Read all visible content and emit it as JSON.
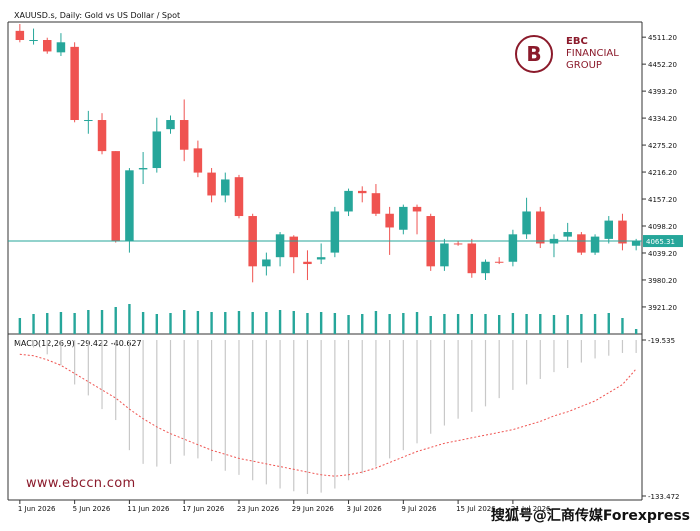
{
  "chart_data": {
    "type": "candlestick",
    "title": "XAUUSD.s, Daily:  Gold vs US Dollar / Spot",
    "ylim": [
      3862.0,
      4540.0
    ],
    "current_price": 4065.31,
    "current_price_label": "4065.31",
    "y_ticks": [
      "4511.20",
      "4452.20",
      "4393.20",
      "4334.20",
      "4275.20",
      "4216.20",
      "4157.20",
      "4098.20",
      "4039.20",
      "3980.20",
      "3921.20"
    ],
    "x_ticks": [
      "1 Jun 2026",
      "5 Jun 2026",
      "11 Jun 2026",
      "17 Jun 2026",
      "23 Jun 2026",
      "29 Jun 2026",
      "3 Jul 2026",
      "9 Jul 2026",
      "15 Jul 2026",
      "21 Jul 2026"
    ],
    "colors": {
      "up": "#26a69a",
      "down": "#ef5350",
      "price_line": "#26a69a",
      "signal": "#ef5350",
      "hist": "#c8c8c8"
    },
    "candles": [
      {
        "o": 4525,
        "h": 4540,
        "l": 4500,
        "c": 4505
      },
      {
        "o": 4505,
        "h": 4530,
        "l": 4495,
        "c": 4505
      },
      {
        "o": 4505,
        "h": 4510,
        "l": 4475,
        "c": 4480
      },
      {
        "o": 4478,
        "h": 4520,
        "l": 4470,
        "c": 4500
      },
      {
        "o": 4490,
        "h": 4500,
        "l": 4325,
        "c": 4330
      },
      {
        "o": 4330,
        "h": 4350,
        "l": 4300,
        "c": 4330
      },
      {
        "o": 4330,
        "h": 4345,
        "l": 4255,
        "c": 4262
      },
      {
        "o": 4262,
        "h": 4262,
        "l": 4062,
        "c": 4065
      },
      {
        "o": 4065,
        "h": 4225,
        "l": 4040,
        "c": 4220
      },
      {
        "o": 4222,
        "h": 4260,
        "l": 4190,
        "c": 4225
      },
      {
        "o": 4225,
        "h": 4335,
        "l": 4215,
        "c": 4305
      },
      {
        "o": 4310,
        "h": 4340,
        "l": 4300,
        "c": 4330
      },
      {
        "o": 4330,
        "h": 4375,
        "l": 4240,
        "c": 4265
      },
      {
        "o": 4268,
        "h": 4285,
        "l": 4205,
        "c": 4215
      },
      {
        "o": 4215,
        "h": 4225,
        "l": 4150,
        "c": 4165
      },
      {
        "o": 4165,
        "h": 4215,
        "l": 4150,
        "c": 4200
      },
      {
        "o": 4205,
        "h": 4210,
        "l": 4115,
        "c": 4120
      },
      {
        "o": 4120,
        "h": 4125,
        "l": 3975,
        "c": 4010
      },
      {
        "o": 4010,
        "h": 4040,
        "l": 3990,
        "c": 4025
      },
      {
        "o": 4030,
        "h": 4085,
        "l": 4010,
        "c": 4080
      },
      {
        "o": 4075,
        "h": 4078,
        "l": 3995,
        "c": 4030
      },
      {
        "o": 4020,
        "h": 4045,
        "l": 3980,
        "c": 4015
      },
      {
        "o": 4025,
        "h": 4060,
        "l": 4015,
        "c": 4030
      },
      {
        "o": 4040,
        "h": 4140,
        "l": 4030,
        "c": 4130
      },
      {
        "o": 4130,
        "h": 4180,
        "l": 4120,
        "c": 4175
      },
      {
        "o": 4175,
        "h": 4185,
        "l": 4150,
        "c": 4170
      },
      {
        "o": 4170,
        "h": 4190,
        "l": 4120,
        "c": 4125
      },
      {
        "o": 4125,
        "h": 4140,
        "l": 4035,
        "c": 4095
      },
      {
        "o": 4090,
        "h": 4145,
        "l": 4080,
        "c": 4140
      },
      {
        "o": 4140,
        "h": 4145,
        "l": 4080,
        "c": 4130
      },
      {
        "o": 4120,
        "h": 4125,
        "l": 4000,
        "c": 4010
      },
      {
        "o": 4010,
        "h": 4070,
        "l": 4000,
        "c": 4060
      },
      {
        "o": 4060,
        "h": 4065,
        "l": 4055,
        "c": 4058
      },
      {
        "o": 4060,
        "h": 4070,
        "l": 3985,
        "c": 3995
      },
      {
        "o": 3995,
        "h": 4025,
        "l": 3980,
        "c": 4020
      },
      {
        "o": 4020,
        "h": 4030,
        "l": 4015,
        "c": 4018
      },
      {
        "o": 4020,
        "h": 4090,
        "l": 4010,
        "c": 4080
      },
      {
        "o": 4080,
        "h": 4160,
        "l": 4070,
        "c": 4130
      },
      {
        "o": 4130,
        "h": 4140,
        "l": 4050,
        "c": 4060
      },
      {
        "o": 4060,
        "h": 4080,
        "l": 4030,
        "c": 4070
      },
      {
        "o": 4075,
        "h": 4105,
        "l": 4065,
        "c": 4085
      },
      {
        "o": 4080,
        "h": 4085,
        "l": 4035,
        "c": 4040
      },
      {
        "o": 4040,
        "h": 4080,
        "l": 4035,
        "c": 4075
      },
      {
        "o": 4070,
        "h": 4120,
        "l": 4060,
        "c": 4110
      },
      {
        "o": 4110,
        "h": 4125,
        "l": 4045,
        "c": 4060
      },
      {
        "o": 4055,
        "h": 4070,
        "l": 4045,
        "c": 4065
      }
    ],
    "volume": [
      16,
      20,
      21,
      22,
      21,
      24,
      24,
      27,
      30,
      22,
      20,
      21,
      24,
      23,
      22,
      22,
      23,
      22,
      22,
      24,
      23,
      21,
      22,
      21,
      19,
      20,
      23,
      20,
      21,
      22,
      18,
      20,
      20,
      20,
      20,
      19,
      21,
      20,
      20,
      19,
      19,
      20,
      20,
      21,
      16,
      5
    ],
    "macd": {
      "label": "MACD(12,26,9) -29.422 -40.627",
      "ylim": [
        -133.472,
        -19.535
      ],
      "y_ticks": [
        "-19.535",
        "-133.472"
      ],
      "histogram": [
        -22,
        -25,
        -30,
        -38,
        -52,
        -60,
        -70,
        -78,
        -100,
        -110,
        -112,
        -110,
        -104,
        -106,
        -108,
        -115,
        -118,
        -122,
        -125,
        -128,
        -130,
        -132,
        -131,
        -128,
        -122,
        -117,
        -112,
        -106,
        -100,
        -95,
        -88,
        -82,
        -77,
        -72,
        -68,
        -62,
        -56,
        -52,
        -48,
        -43,
        -40,
        -36,
        -33,
        -31,
        -29,
        -29
      ],
      "signal": [
        -30,
        -31,
        -34,
        -38,
        -44,
        -50,
        -56,
        -62,
        -70,
        -77,
        -83,
        -88,
        -92,
        -96,
        -100,
        -103,
        -106,
        -108,
        -110,
        -112,
        -114,
        -116,
        -118,
        -119,
        -118,
        -116,
        -113,
        -109,
        -105,
        -101,
        -98,
        -95,
        -93,
        -91,
        -89,
        -87,
        -85,
        -82,
        -79,
        -75,
        -72,
        -68,
        -64,
        -58,
        -52,
        -40.627
      ]
    }
  },
  "header": {
    "title": "XAUUSD.s, Daily:  Gold vs US Dollar / Spot"
  },
  "brand": {
    "logo_line1": "EBC",
    "logo_line2": "FINANCIAL",
    "logo_line3": "GROUP",
    "logo_mark": "B",
    "accent": "#8b1a2b"
  },
  "footer": {
    "site": "www.ebccn.com",
    "watermark": "搜狐号@汇商传媒Forexpress"
  }
}
